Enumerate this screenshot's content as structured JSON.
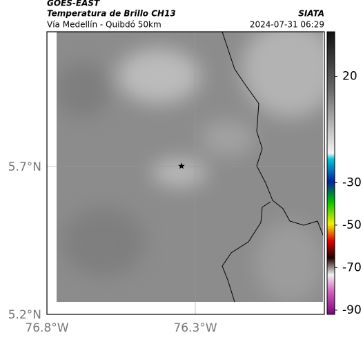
{
  "header": {
    "source": "GOES-EAST",
    "product": "Temperatura de Brillo CH13",
    "region": "Vía Medellín - Quibdó 50km",
    "agency": "SIATA",
    "datetime": "2024-07-31 06:29"
  },
  "map": {
    "lat_labels": [
      "5.7°N",
      "5.2°N"
    ],
    "lon_labels": [
      "76.8°W",
      "76.3°W"
    ]
  },
  "colorbar": {
    "lim": [
      -92,
      41
    ],
    "ticks": [
      20,
      -30,
      -50,
      -70,
      -90
    ]
  }
}
